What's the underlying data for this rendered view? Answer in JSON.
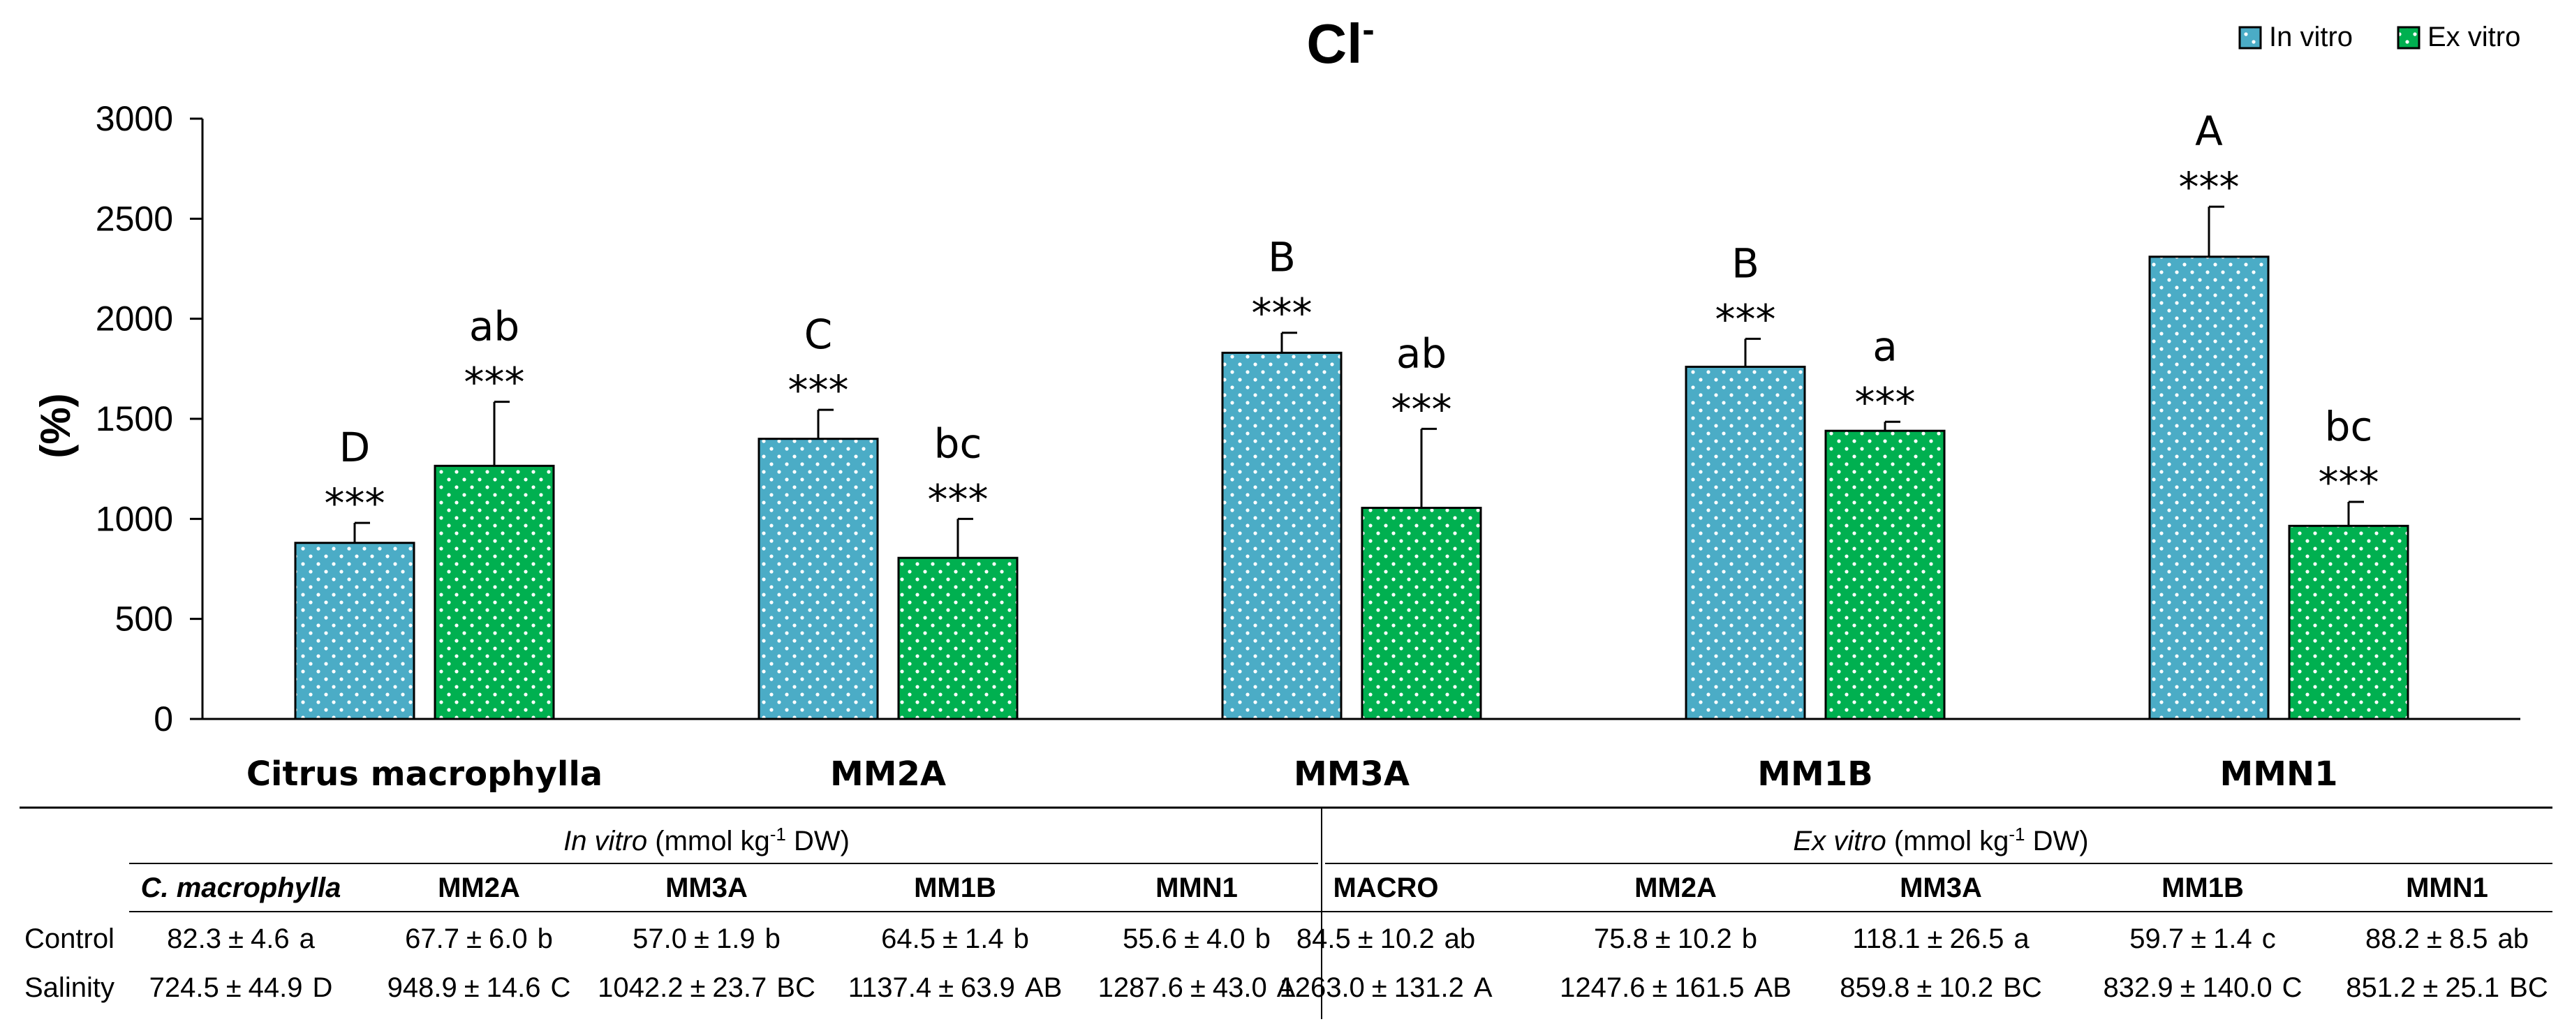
{
  "chart_data": {
    "type": "bar",
    "title": "Cl",
    "title_superscript": "-",
    "ylabel": "(%)",
    "ylim": [
      0,
      3000
    ],
    "yticks": [
      0,
      500,
      1000,
      1500,
      2000,
      2500,
      3000
    ],
    "legend_position": "top-right",
    "categories": [
      "Citrus macrophylla",
      "MM2A",
      "MM3A",
      "MM1B",
      "MMN1"
    ],
    "series": [
      {
        "name": "In vitro",
        "color": "#4bacc6",
        "values": [
          880,
          1400,
          1830,
          1760,
          2310
        ],
        "errors": [
          100,
          145,
          100,
          140,
          250
        ],
        "letters": [
          "D",
          "C",
          "B",
          "B",
          "A"
        ],
        "stars": [
          "***",
          "***",
          "***",
          "***",
          "***"
        ]
      },
      {
        "name": "Ex vitro",
        "color": "#00b050",
        "values": [
          1265,
          805,
          1055,
          1440,
          965
        ],
        "errors": [
          320,
          195,
          395,
          45,
          120
        ],
        "letters": [
          "ab",
          "bc",
          "ab",
          "a",
          "bc"
        ],
        "stars": [
          "***",
          "***",
          "***",
          "***",
          "***"
        ]
      }
    ]
  },
  "table": {
    "in_vitro_header_italic": "In vitro",
    "ex_vitro_header_italic": "Ex vitro",
    "unit_prefix": "(mmol kg",
    "unit_sup": "-1",
    "unit_suffix": " DW)",
    "in_vitro_columns": [
      "C. macrophylla",
      "MM2A",
      "MM3A",
      "MM1B",
      "MMN1"
    ],
    "ex_vitro_columns": [
      "MACRO",
      "MM2A",
      "MM3A",
      "MM1B",
      "MMN1"
    ],
    "rows": [
      {
        "label": "Control",
        "in_vitro": [
          {
            "value": "82.3",
            "pm": "±",
            "err": "4.6",
            "letter": "a"
          },
          {
            "value": "67.7",
            "pm": "±",
            "err": "6.0",
            "letter": "b"
          },
          {
            "value": "57.0",
            "pm": "±",
            "err": "1.9",
            "letter": "b"
          },
          {
            "value": "64.5",
            "pm": "±",
            "err": "1.4",
            "letter": "b"
          },
          {
            "value": "55.6",
            "pm": "±",
            "err": "4.0",
            "letter": "b"
          }
        ],
        "ex_vitro": [
          {
            "value": "84.5",
            "pm": "±",
            "err": "10.2",
            "letter": "ab"
          },
          {
            "value": "75.8",
            "pm": "±",
            "err": "10.2",
            "letter": "b"
          },
          {
            "value": "118.1",
            "pm": "±",
            "err": "26.5",
            "letter": "a"
          },
          {
            "value": "59.7",
            "pm": "±",
            "err": "1.4",
            "letter": "c"
          },
          {
            "value": "88.2",
            "pm": "±",
            "err": "8.5",
            "letter": "ab"
          }
        ]
      },
      {
        "label": "Salinity",
        "in_vitro": [
          {
            "value": "724.5",
            "pm": "±",
            "err": "44.9",
            "letter": "D"
          },
          {
            "value": "948.9",
            "pm": "±",
            "err": "14.6",
            "letter": "C"
          },
          {
            "value": "1042.2",
            "pm": "±",
            "err": "23.7",
            "letter": "BC"
          },
          {
            "value": "1137.4",
            "pm": "±",
            "err": "63.9",
            "letter": "AB"
          },
          {
            "value": "1287.6",
            "pm": "±",
            "err": "43.0",
            "letter": "A"
          }
        ],
        "ex_vitro": [
          {
            "value": "1263.0",
            "pm": "±",
            "err": "131.2",
            "letter": "A"
          },
          {
            "value": "1247.6",
            "pm": "±",
            "err": "161.5",
            "letter": "AB"
          },
          {
            "value": "859.8",
            "pm": "±",
            "err": "10.2",
            "letter": "BC"
          },
          {
            "value": "832.9",
            "pm": "±",
            "err": "140.0",
            "letter": "C"
          },
          {
            "value": "851.2",
            "pm": "±",
            "err": "25.1",
            "letter": "BC"
          }
        ]
      }
    ]
  }
}
